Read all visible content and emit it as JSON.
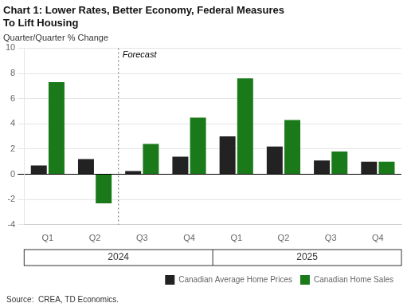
{
  "chart_data": {
    "type": "bar",
    "title": "Chart 1: Lower Rates, Better Economy, Federal Measures\nTo Lift Housing",
    "subtitle": "Quarter/Quarter % Change",
    "source": "Source:  CREA, TD Economics.",
    "categories": [
      "Q1",
      "Q2",
      "Q3",
      "Q4",
      "Q1",
      "Q2",
      "Q3",
      "Q4"
    ],
    "category_groups": [
      "2024",
      "2025"
    ],
    "annotations": [
      {
        "type": "vline",
        "text": "Forecast",
        "start_index": 2
      }
    ],
    "series": [
      {
        "name": "Canadian Average Home Prices",
        "color": "#222222",
        "values": [
          0.7,
          1.2,
          0.25,
          1.4,
          3.0,
          2.2,
          1.1,
          1.0
        ]
      },
      {
        "name": "Canadian Home Sales",
        "color": "#1a7a1a",
        "values": [
          7.3,
          -2.3,
          2.4,
          4.5,
          7.6,
          4.3,
          1.8,
          1.0
        ]
      }
    ],
    "ylim": [
      -4,
      10
    ],
    "yticks": [
      -4,
      -2,
      0,
      2,
      4,
      6,
      8,
      10
    ],
    "grid": true,
    "legend": "lower right"
  }
}
